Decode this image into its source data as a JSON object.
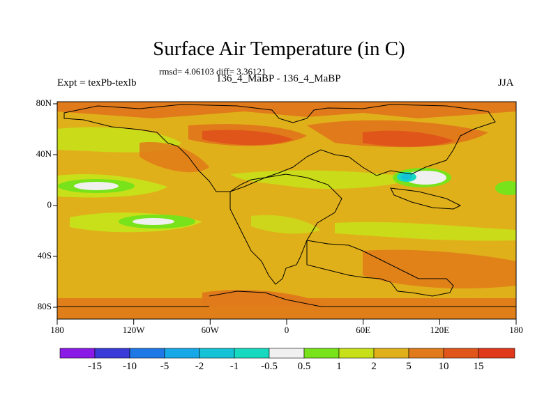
{
  "title": "Surface Air Temperature (in C)",
  "stats": "rmsd= 4.06103 diff= 3.36121",
  "left_label": "Expt = texPb-texlb",
  "center_label": "136_4_MaBP - 136_4_MaBP",
  "season_label": "JJA",
  "map": {
    "lon_ticks": [
      "180",
      "120W",
      "60W",
      "0",
      "60E",
      "120E",
      "180"
    ],
    "lat_ticks": [
      "80N",
      "40N",
      "0",
      "40S",
      "80S"
    ]
  },
  "colorbar": {
    "levels": [
      "-15",
      "-10",
      "-5",
      "-2",
      "-1",
      "-0.5",
      "0.5",
      "1",
      "2",
      "5",
      "10",
      "15"
    ],
    "colors": [
      "#8a1ae6",
      "#3a3ad9",
      "#1e78e6",
      "#17a8e8",
      "#16c3d6",
      "#16d9c0",
      "#f0f0f0",
      "#78e21a",
      "#c8e01a",
      "#e0b01a",
      "#e07a1a",
      "#e0561a",
      "#e0381a"
    ]
  }
}
